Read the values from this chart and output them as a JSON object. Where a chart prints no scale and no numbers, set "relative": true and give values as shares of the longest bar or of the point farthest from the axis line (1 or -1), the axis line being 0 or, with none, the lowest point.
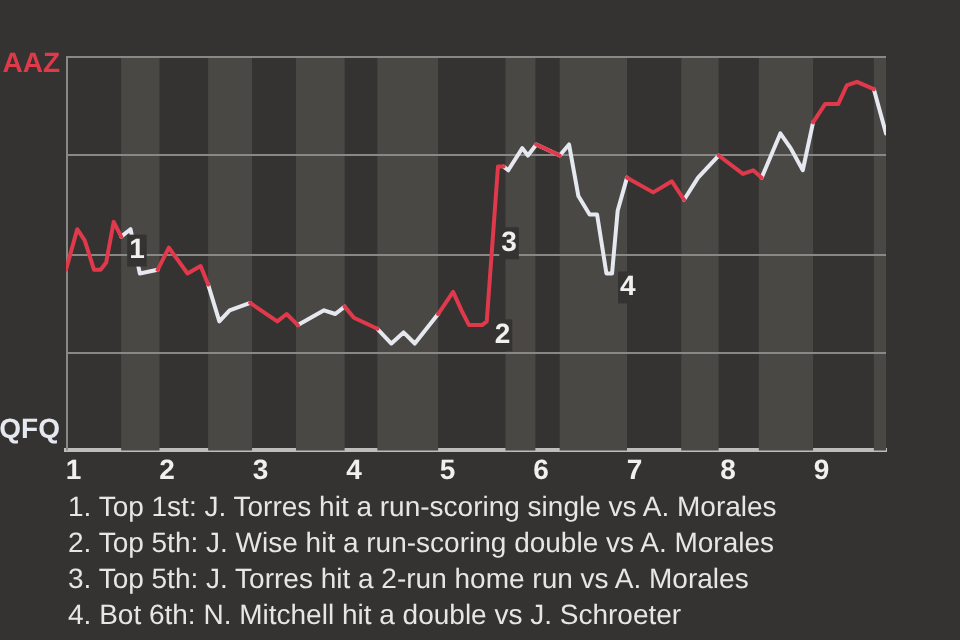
{
  "chart_data": {
    "type": "line",
    "relative": true,
    "x": [
      0.92,
      1.04,
      1.12,
      1.22,
      1.29,
      1.35,
      1.43,
      1.51,
      1.61,
      1.71,
      1.9,
      2.02,
      2.22,
      2.36,
      2.44,
      2.56,
      2.67,
      2.89,
      3.18,
      3.28,
      3.4,
      3.68,
      3.8,
      3.9,
      4.0,
      4.25,
      4.4,
      4.53,
      4.65,
      4.9,
      5.06,
      5.15,
      5.23,
      5.37,
      5.42,
      5.54,
      5.6,
      5.65,
      5.8,
      5.86,
      5.95,
      6.2,
      6.3,
      6.4,
      6.52,
      6.6,
      6.7,
      6.76,
      6.82,
      6.92,
      7.2,
      7.4,
      7.53,
      7.68,
      7.9,
      8.16,
      8.27,
      8.36,
      8.56,
      8.67,
      8.8,
      8.91,
      9.04,
      9.18,
      9.27,
      9.38,
      9.56,
      9.69
    ],
    "series": [
      {
        "color": "#e0394b",
        "values": [
          0.49,
          0.6,
          0.57,
          0.49,
          0.49,
          0.51,
          0.62,
          0.58,
          null,
          null,
          0.49,
          0.55,
          0.48,
          0.5,
          0.45,
          null,
          null,
          0.4,
          0.35,
          0.37,
          0.34,
          null,
          null,
          0.39,
          0.36,
          0.33,
          null,
          null,
          null,
          0.37,
          0.43,
          0.38,
          0.34,
          0.34,
          0.35,
          0.77,
          0.77,
          null,
          null,
          null,
          0.83,
          0.8,
          null,
          null,
          null,
          null,
          null,
          null,
          null,
          0.74,
          0.7,
          0.73,
          0.68,
          null,
          0.8,
          0.75,
          0.76,
          0.74,
          null,
          null,
          null,
          0.89,
          0.94,
          0.94,
          0.99,
          1,
          0.98,
          null
        ]
      },
      {
        "color": "#e6e8ef",
        "values": [
          null,
          null,
          null,
          null,
          null,
          null,
          null,
          0.58,
          0.6,
          0.48,
          0.49,
          null,
          null,
          null,
          0.45,
          0.35,
          0.38,
          0.4,
          null,
          null,
          0.34,
          0.38,
          0.37,
          0.39,
          null,
          0.33,
          0.29,
          0.32,
          0.29,
          0.37,
          null,
          null,
          null,
          null,
          null,
          null,
          0.77,
          0.76,
          0.82,
          0.8,
          0.83,
          0.8,
          0.83,
          0.69,
          0.64,
          0.64,
          0.48,
          0.48,
          0.65,
          0.74,
          null,
          null,
          0.68,
          0.74,
          0.8,
          null,
          null,
          0.74,
          0.86,
          0.82,
          0.76,
          0.89,
          null,
          null,
          null,
          null,
          0.98,
          0.86
        ]
      }
    ],
    "xlim": [
      0.92,
      9.69
    ],
    "xticks": [
      1,
      2,
      3,
      4,
      5,
      6,
      7,
      8,
      9
    ],
    "grid": "y",
    "legend": false,
    "marker": "none",
    "line_style": "solid",
    "bands": [
      {
        "axis": "x",
        "from": 1.51,
        "to": 1.92,
        "color": "#4a4845"
      },
      {
        "axis": "x",
        "from": 2.44,
        "to": 2.91,
        "color": "#4a4845"
      },
      {
        "axis": "x",
        "from": 3.38,
        "to": 3.9,
        "color": "#4a4845"
      },
      {
        "axis": "x",
        "from": 4.25,
        "to": 4.9,
        "color": "#4a4845"
      },
      {
        "axis": "x",
        "from": 5.62,
        "to": 5.94,
        "color": "#4a4845"
      },
      {
        "axis": "x",
        "from": 6.2,
        "to": 6.92,
        "color": "#4a4845"
      },
      {
        "axis": "x",
        "from": 7.5,
        "to": 7.9,
        "color": "#4a4845"
      },
      {
        "axis": "x",
        "from": 8.33,
        "to": 8.91,
        "color": "#4a4845"
      },
      {
        "axis": "x",
        "from": 9.56,
        "to": 9.69,
        "color": "#4a4845"
      }
    ],
    "annotations": [
      "AAZ",
      "QFQ",
      {
        "text": "1",
        "x": 1.51,
        "y": 0.58
      },
      {
        "text": "2",
        "x": 5.42,
        "y": 0.35
      },
      {
        "text": "3",
        "x": 5.49,
        "y": 0.6
      },
      {
        "text": "4",
        "x": 6.76,
        "y": 0.48
      },
      "1. Top 1st: J. Torres hit a run-scoring single vs A. Morales",
      "2. Top 5th: J. Wise hit a run-scoring double vs A. Morales",
      "3. Top 5th: J. Torres hit a 2-run home run vs A. Morales",
      "4. Bot 6th: N. Mitchell hit a double vs J. Schroeter"
    ]
  }
}
